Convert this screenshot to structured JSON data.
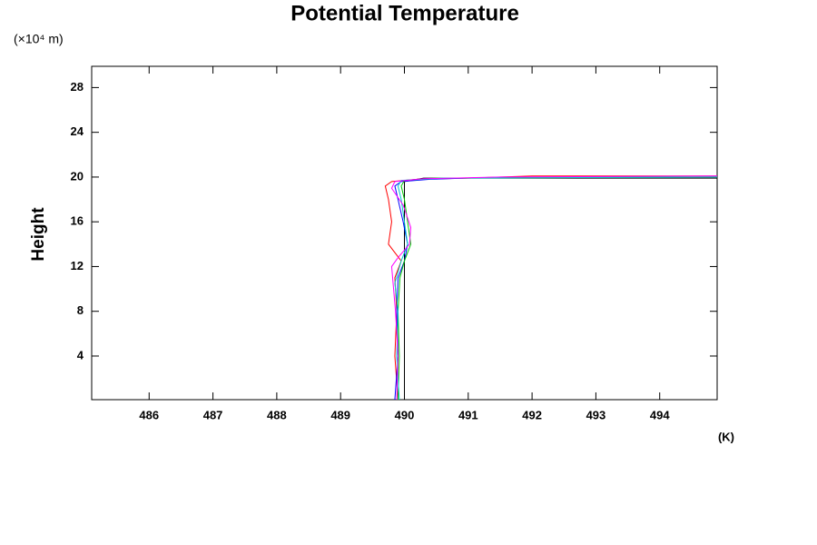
{
  "chart_data": {
    "type": "line",
    "title": "Potential Temperature",
    "y_unit": "(×10⁴ m)",
    "ylabel": "Height",
    "x_unit": "(K)",
    "xlim": [
      485.1,
      494.9
    ],
    "ylim": [
      0.1,
      29.9
    ],
    "xticks": [
      486,
      487,
      488,
      489,
      490,
      491,
      492,
      493,
      494
    ],
    "yticks": [
      4,
      8,
      12,
      16,
      20,
      24,
      28
    ],
    "series": [
      {
        "color": "#000000",
        "x": [
          490,
          490,
          490.3,
          494.9
        ],
        "values": [
          0.1,
          19.6,
          19.9,
          19.9
        ]
      },
      {
        "color": "#ff0000",
        "x": [
          489.9,
          489.85,
          489.88,
          489.85,
          489.95,
          489.75,
          489.8,
          489.75,
          489.7,
          489.8,
          490.2,
          491,
          492,
          494.9
        ],
        "values": [
          0.1,
          4,
          8,
          11,
          12.5,
          14,
          16,
          18,
          19.2,
          19.6,
          19.8,
          19.9,
          20.1,
          20.1
        ]
      },
      {
        "color": "#0000ff",
        "x": [
          489.85,
          489.9,
          489.88,
          489.9,
          490,
          490.05,
          489.98,
          489.9,
          489.85,
          489.95,
          490.4,
          491.2,
          494.9
        ],
        "values": [
          0.1,
          4,
          8,
          11,
          12.5,
          14,
          16,
          18,
          19.2,
          19.6,
          19.8,
          19.95,
          20
        ]
      },
      {
        "color": "#00cc00",
        "x": [
          489.9,
          489.92,
          489.9,
          489.93,
          490,
          490.1,
          490.05,
          490,
          489.95,
          490,
          490.5,
          494.9
        ],
        "values": [
          0.1,
          4,
          8,
          11,
          12.5,
          14,
          16,
          18,
          19.2,
          19.7,
          19.9,
          20
        ]
      },
      {
        "color": "#00cccc",
        "x": [
          489.92,
          489.88,
          489.9,
          489.85,
          489.95,
          490.05,
          490,
          489.95,
          489.9,
          489.95,
          490.6,
          494.9
        ],
        "values": [
          0.1,
          4,
          8,
          10.5,
          12.5,
          14,
          16,
          18,
          19.2,
          19.7,
          19.9,
          20
        ]
      },
      {
        "color": "#ff00ff",
        "x": [
          489.88,
          489.9,
          489.86,
          489.8,
          489.9,
          490.08,
          490.1,
          489.98,
          489.8,
          489.85,
          490.3,
          491.5,
          494.9
        ],
        "values": [
          0.1,
          4,
          8,
          12,
          12.8,
          14,
          15.5,
          17.5,
          19,
          19.6,
          19.85,
          20,
          20.1
        ]
      }
    ]
  }
}
